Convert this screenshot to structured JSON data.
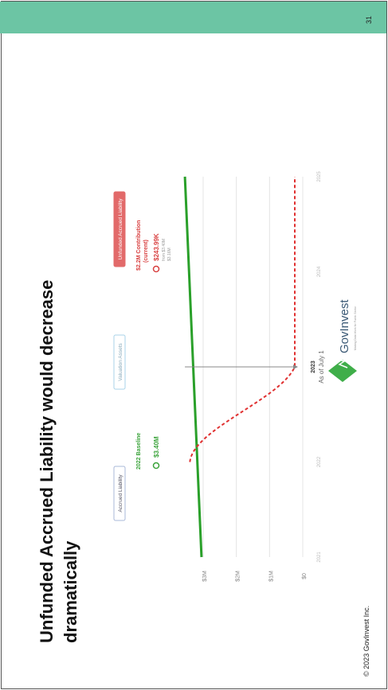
{
  "slide": {
    "page_number": "31",
    "title_line1": "Unfunded Accrued Liability would decrease",
    "title_line2": "dramatically",
    "copyright": "© 2023 GovInvest Inc."
  },
  "legend": {
    "accrued_liability": "Accrued Liability",
    "valuation_assets": "Valuation Assets",
    "unfunded_accrued_liability": "Unfunded Accrued Liability"
  },
  "baseline": {
    "label": "2022 Baseline",
    "value": "$3.40M"
  },
  "contribution": {
    "label_line1": "$2.2M Contribution",
    "label_line2": "(current)",
    "value": "$243.99K",
    "sub1": "from $3.40M",
    "sub2": "$3.16M"
  },
  "marker": {
    "year": "2023",
    "caption": "As of July 1"
  },
  "logo": {
    "name": "GovInvest",
    "tagline": "Making Data Work for Public Sector"
  },
  "colors": {
    "accrued": "#2aa02a",
    "unfunded": "#e03030",
    "band": "#6cc5a4"
  },
  "chart_data": {
    "type": "line",
    "x": [
      2021,
      2022,
      2023,
      2024,
      2025
    ],
    "xticks": [
      "2021",
      "2022",
      "2023",
      "2024",
      "2025"
    ],
    "yticks": [
      "$0",
      "$1M",
      "$2M",
      "$3M"
    ],
    "ylim": [
      0,
      3.6
    ],
    "series": [
      {
        "name": "Accrued Liability",
        "x": [
          2021,
          2025
        ],
        "values": [
          3.05,
          3.55
        ]
      },
      {
        "name": "Unfunded Accrued Liability",
        "x": [
          2022,
          2022.2,
          2022.5,
          2022.8,
          2023,
          2024,
          2025
        ],
        "values": [
          3.4,
          3.0,
          1.8,
          0.6,
          0.24,
          0.24,
          0.24
        ]
      }
    ]
  }
}
